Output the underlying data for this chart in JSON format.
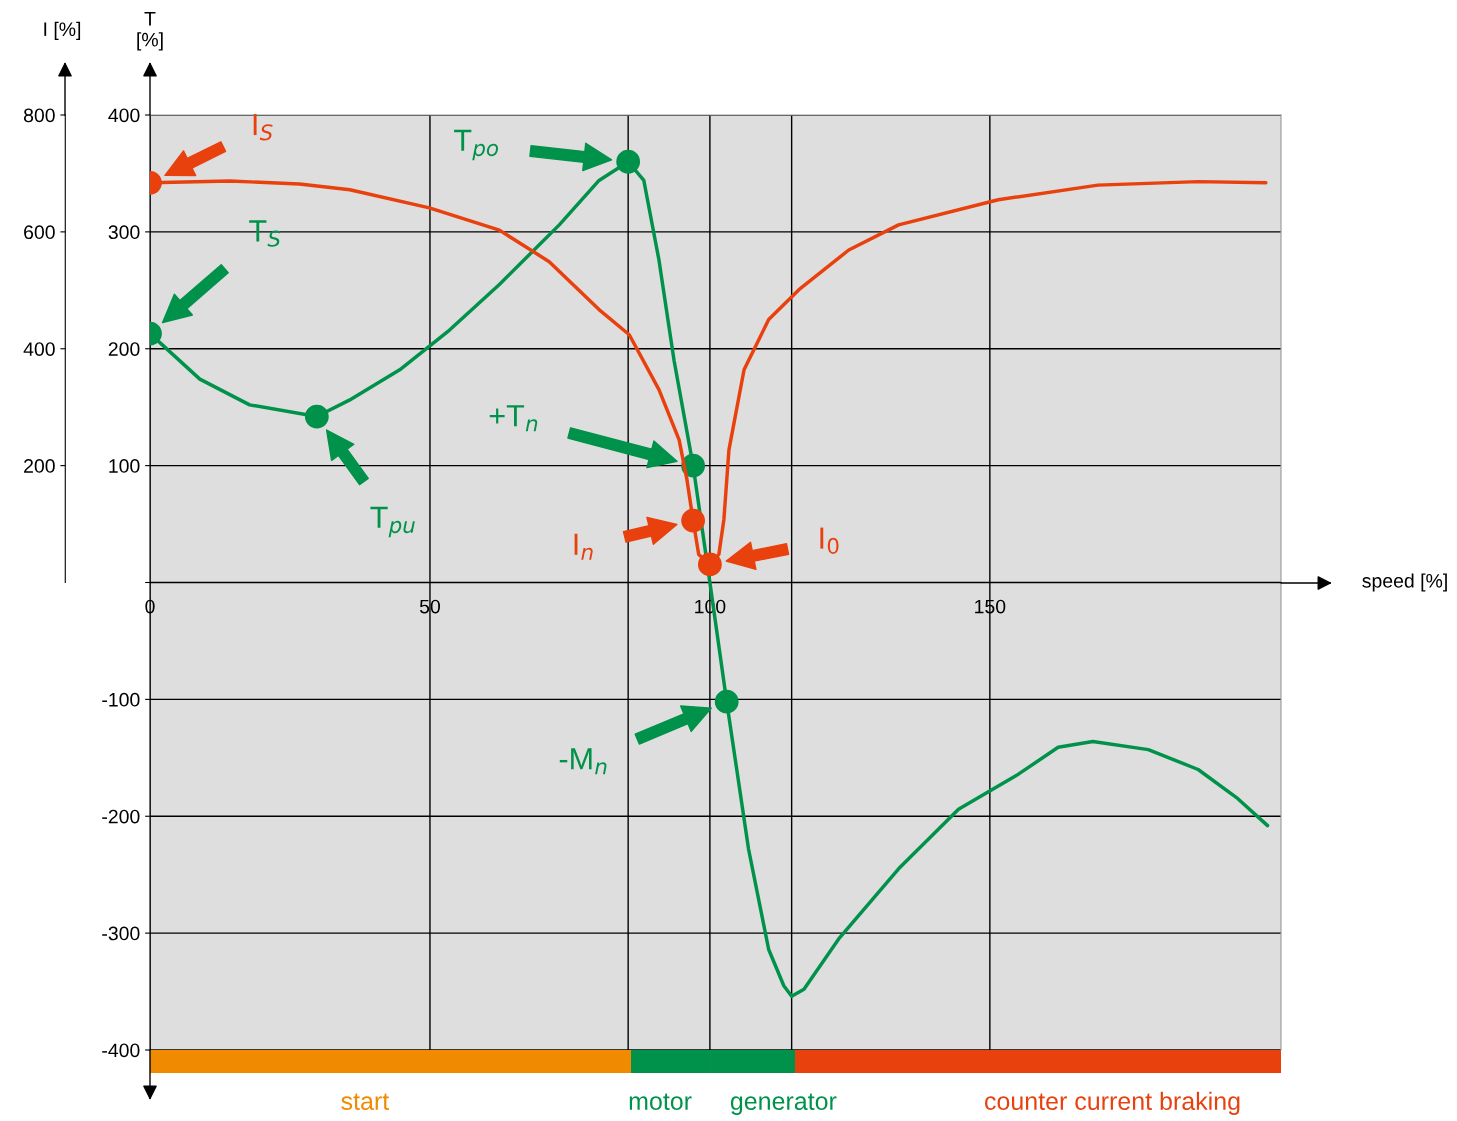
{
  "chart_data": {
    "type": "line",
    "xlabel": "speed [%]",
    "ylabel": "T\n[%]",
    "y2label": "I [%]",
    "xlim": [
      0,
      202
    ],
    "xticks": [
      0,
      50,
      {
        "value": 85.4,
        "label": null
      },
      100,
      {
        "value": 114.6,
        "label": null
      },
      150
    ],
    "ylim": [
      -400,
      400
    ],
    "yticks": [
      -400,
      -300,
      -200,
      -100,
      {
        "value": 0,
        "label": null
      },
      100,
      200,
      300,
      400
    ],
    "y2lim": [
      -800,
      800
    ],
    "y2ticks": [
      200,
      400,
      600,
      800
    ],
    "grid": true,
    "series": [
      {
        "color": "#00924a",
        "marker": "none",
        "x": [
          0,
          8.9,
          17.8,
          29.8,
          35.6,
          44.6,
          53.5,
          62.4,
          73.1,
          80.2,
          85.4,
          88.2,
          90.9,
          93.6,
          97.0,
          100,
          103.0,
          106.9,
          110.5,
          113.2,
          114.6,
          116.8,
          123,
          133.7,
          144.4,
          155.1,
          162.2,
          168.4,
          178.3,
          187.2,
          194.3,
          199.6
        ],
        "values": [
          213,
          174,
          152,
          142,
          156,
          182,
          216,
          255,
          306,
          344,
          360,
          344,
          276,
          190,
          100,
          0,
          -102,
          -228,
          -314,
          -345,
          -354,
          -348,
          -305,
          -245,
          -194,
          -164,
          -141,
          -136,
          -143,
          -160,
          -185,
          -208
        ]
      },
      {
        "axis": "y2",
        "color": "#e8410e",
        "marker": "none",
        "x": [
          0,
          14.3,
          26.7,
          35.7,
          49.9,
          62.4,
          71.3,
          80.2,
          85.6,
          90.9,
          94.5,
          95.9,
          97.0,
          98.0,
          100,
          101.6,
          102.5,
          103.4,
          106.1,
          110.5,
          115.9,
          124.8,
          133.7,
          151.5,
          169.3,
          187.2,
          199.3
        ],
        "values": [
          684,
          687,
          682,
          672,
          641,
          603,
          549,
          467,
          424,
          330,
          244,
          176,
          106,
          48,
          31,
          48,
          108,
          227,
          364,
          450,
          501,
          569,
          612,
          655,
          680,
          686,
          684
        ]
      },
      {
        "type": "scatter",
        "color": "#00924a",
        "marker": "circle",
        "x": [
          0,
          29.8,
          85.4,
          97.0,
          103.0
        ],
        "values": [
          213,
          142,
          360,
          100,
          -102
        ]
      },
      {
        "type": "scatter",
        "axis": "y2",
        "color": "#e8410e",
        "marker": "circle",
        "x": [
          0,
          97.0,
          100
        ],
        "values": [
          684,
          106,
          31
        ]
      }
    ],
    "annotations": [
      "T$_{S}$",
      "T$_{pu}$",
      "T$_{po}$",
      "+T$_{n}$",
      "-M$_{n}$",
      "I$_{S}$",
      "I$_{n}$",
      "I$_{0}$",
      "start",
      "motor",
      "generator",
      "counter current braking"
    ]
  }
}
